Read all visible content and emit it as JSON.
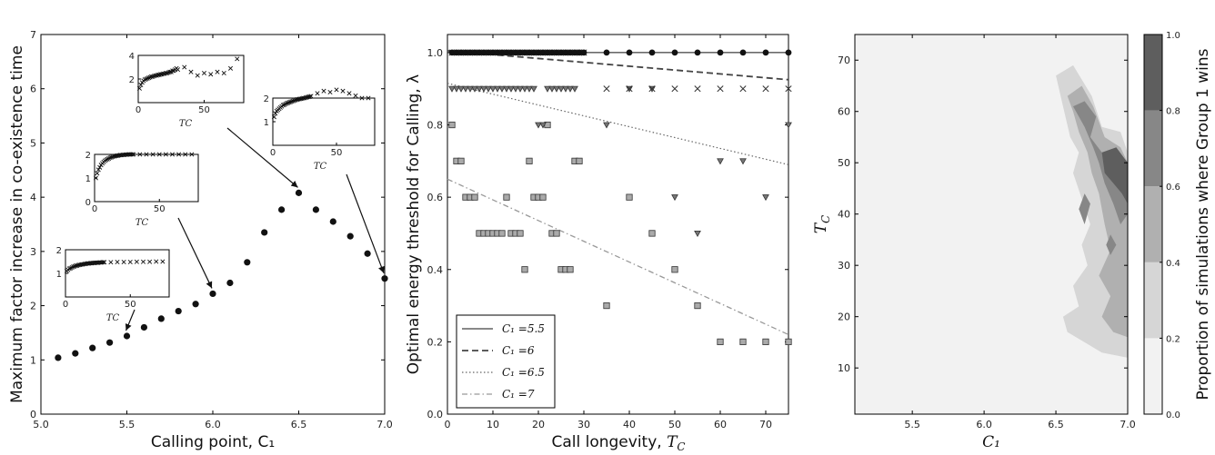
{
  "chart_data": [
    {
      "type": "scatter",
      "xlabel": "Calling point, C₁",
      "ylabel": "Maximum factor increase in co-existence time",
      "xlim": [
        5.0,
        7.0
      ],
      "ylim": [
        0,
        7
      ],
      "x_ticks": [
        "5.0",
        "5.5",
        "6.0",
        "6.5",
        "7.0"
      ],
      "y_ticks": [
        "0",
        "1",
        "2",
        "3",
        "4",
        "5",
        "6",
        "7"
      ],
      "series": [
        {
          "marker": "circle",
          "x": [
            5.1,
            5.2,
            5.3,
            5.4,
            5.5,
            5.6,
            5.7,
            5.8,
            5.9,
            6.0,
            6.1,
            6.2,
            6.3,
            6.4,
            6.5,
            6.6,
            6.7,
            6.8,
            6.9,
            7.0
          ],
          "y": [
            1.04,
            1.12,
            1.22,
            1.32,
            1.44,
            1.6,
            1.76,
            1.9,
            2.03,
            2.22,
            2.42,
            2.8,
            3.35,
            3.77,
            4.08,
            3.77,
            3.55,
            3.28,
            2.96,
            2.5
          ]
        }
      ],
      "insets": [
        {
          "xlabel": "T_C",
          "xlim": [
            0,
            80
          ],
          "ylim": [
            0,
            2
          ],
          "x_ticks": [
            "0",
            "50"
          ],
          "y_ticks": [
            "1",
            "2"
          ],
          "points_x": [
            1,
            2,
            3,
            4,
            5,
            6,
            7,
            8,
            9,
            10,
            11,
            12,
            13,
            14,
            15,
            16,
            17,
            18,
            19,
            20,
            21,
            22,
            23,
            24,
            25,
            26,
            27,
            28,
            29,
            30,
            35,
            40,
            45,
            50,
            55,
            60,
            65,
            70,
            75
          ],
          "points_y": [
            1.1,
            1.15,
            1.2,
            1.22,
            1.25,
            1.28,
            1.3,
            1.32,
            1.33,
            1.35,
            1.36,
            1.37,
            1.38,
            1.39,
            1.4,
            1.41,
            1.42,
            1.42,
            1.43,
            1.43,
            1.44,
            1.44,
            1.45,
            1.45,
            1.45,
            1.46,
            1.46,
            1.46,
            1.47,
            1.47,
            1.47,
            1.48,
            1.48,
            1.48,
            1.49,
            1.49,
            1.49,
            1.5,
            1.5
          ],
          "arrow_to": [
            5.5,
            1.44
          ]
        },
        {
          "xlabel": "T_C",
          "xlim": [
            0,
            80
          ],
          "ylim": [
            0,
            2
          ],
          "x_ticks": [
            "0",
            "50"
          ],
          "y_ticks": [
            "0",
            "1",
            "2"
          ],
          "points_x": [
            1,
            2,
            3,
            4,
            5,
            6,
            7,
            8,
            9,
            10,
            11,
            12,
            13,
            14,
            15,
            16,
            17,
            18,
            19,
            20,
            21,
            22,
            23,
            24,
            25,
            26,
            27,
            28,
            29,
            30,
            35,
            40,
            45,
            50,
            55,
            60,
            65,
            70,
            75
          ],
          "points_y": [
            1.0,
            1.2,
            1.35,
            1.45,
            1.55,
            1.62,
            1.68,
            1.73,
            1.77,
            1.8,
            1.83,
            1.86,
            1.88,
            1.9,
            1.92,
            1.93,
            1.94,
            1.95,
            1.96,
            1.97,
            1.97,
            1.98,
            1.98,
            1.99,
            1.99,
            2.0,
            2.0,
            2.0,
            2.0,
            2.0,
            2.0,
            2.0,
            2.0,
            2.0,
            2.0,
            2.0,
            2.0,
            2.0,
            2.0
          ],
          "arrow_to": [
            6.0,
            2.22
          ]
        },
        {
          "xlabel": "T_C",
          "xlim": [
            0,
            80
          ],
          "ylim": [
            0,
            4
          ],
          "x_ticks": [
            "0",
            "50"
          ],
          "y_ticks": [
            "2",
            "4"
          ],
          "points_x": [
            1,
            2,
            3,
            4,
            5,
            6,
            7,
            8,
            9,
            10,
            11,
            12,
            13,
            14,
            15,
            16,
            17,
            18,
            19,
            20,
            21,
            22,
            23,
            24,
            25,
            26,
            27,
            28,
            29,
            30,
            35,
            40,
            45,
            50,
            55,
            60,
            65,
            70,
            75
          ],
          "points_y": [
            1.2,
            1.5,
            1.7,
            1.85,
            1.95,
            2.0,
            2.05,
            2.1,
            2.15,
            2.2,
            2.2,
            2.25,
            2.3,
            2.3,
            2.35,
            2.35,
            2.4,
            2.4,
            2.45,
            2.45,
            2.5,
            2.5,
            2.55,
            2.6,
            2.6,
            2.7,
            2.7,
            2.8,
            2.9,
            2.8,
            3.0,
            2.6,
            2.3,
            2.5,
            2.4,
            2.6,
            2.5,
            2.9,
            3.7
          ],
          "arrow_to": [
            6.5,
            4.08
          ]
        },
        {
          "xlabel": "T_C",
          "xlim": [
            0,
            80
          ],
          "ylim": [
            0,
            2
          ],
          "x_ticks": [
            "0",
            "50"
          ],
          "y_ticks": [
            "1",
            "2"
          ],
          "points_x": [
            1,
            2,
            3,
            4,
            5,
            6,
            7,
            8,
            9,
            10,
            11,
            12,
            13,
            14,
            15,
            16,
            17,
            18,
            19,
            20,
            21,
            22,
            23,
            24,
            25,
            26,
            27,
            28,
            29,
            30,
            35,
            40,
            45,
            50,
            55,
            60,
            65,
            70,
            75
          ],
          "points_y": [
            1.2,
            1.35,
            1.45,
            1.5,
            1.55,
            1.6,
            1.65,
            1.7,
            1.72,
            1.75,
            1.78,
            1.8,
            1.82,
            1.84,
            1.86,
            1.88,
            1.9,
            1.92,
            1.94,
            1.95,
            1.96,
            1.97,
            1.98,
            2.0,
            2.0,
            2.02,
            2.04,
            2.05,
            2.06,
            2.08,
            2.2,
            2.3,
            2.25,
            2.35,
            2.3,
            2.2,
            2.1,
            2.0,
            2.0
          ],
          "arrow_to": [
            7.0,
            2.5
          ]
        }
      ]
    },
    {
      "type": "scatter",
      "xlabel": "Call longevity, T_C",
      "ylabel": "Optimal energy threshold for Calling, λ",
      "xlim": [
        0,
        75
      ],
      "ylim": [
        0.0,
        1.05
      ],
      "x_ticks": [
        "0",
        "10",
        "20",
        "30",
        "40",
        "50",
        "60",
        "70"
      ],
      "y_ticks": [
        "0.0",
        "0.2",
        "0.4",
        "0.6",
        "0.8",
        "1.0"
      ],
      "legend": "lower-left",
      "series": [
        {
          "name": "C₁ =5.5",
          "line_style": "solid",
          "marker": "circle",
          "x": [
            1,
            2,
            3,
            4,
            5,
            6,
            7,
            8,
            9,
            10,
            11,
            12,
            13,
            14,
            15,
            16,
            17,
            18,
            19,
            20,
            21,
            22,
            23,
            24,
            25,
            26,
            27,
            28,
            29,
            30,
            35,
            40,
            45,
            50,
            55,
            60,
            65,
            70,
            75
          ],
          "y": [
            1.0,
            1.0,
            1.0,
            1.0,
            1.0,
            1.0,
            1.0,
            1.0,
            1.0,
            1.0,
            1.0,
            1.0,
            1.0,
            1.0,
            1.0,
            1.0,
            1.0,
            1.0,
            1.0,
            1.0,
            1.0,
            1.0,
            1.0,
            1.0,
            1.0,
            1.0,
            1.0,
            1.0,
            1.0,
            1.0,
            1.0,
            1.0,
            1.0,
            1.0,
            1.0,
            1.0,
            1.0,
            1.0,
            1.0
          ],
          "fit": [
            [
              0,
              1.0
            ],
            [
              75,
              1.0
            ]
          ]
        },
        {
          "name": "C₁ =6",
          "line_style": "dashed",
          "marker": "x",
          "x": [
            1,
            2,
            3,
            4,
            5,
            6,
            7,
            8,
            9,
            10,
            11,
            12,
            13,
            14,
            15,
            16,
            17,
            18,
            19,
            20,
            21,
            22,
            23,
            24,
            25,
            26,
            27,
            28,
            29,
            30,
            35,
            40,
            45,
            50,
            55,
            60,
            65,
            70,
            75
          ],
          "y": [
            1.0,
            1.0,
            1.0,
            1.0,
            1.0,
            1.0,
            1.0,
            1.0,
            1.0,
            1.0,
            1.0,
            1.0,
            1.0,
            1.0,
            1.0,
            1.0,
            1.0,
            1.0,
            1.0,
            1.0,
            1.0,
            1.0,
            1.0,
            1.0,
            1.0,
            1.0,
            1.0,
            1.0,
            1.0,
            1.0,
            0.9,
            0.9,
            0.9,
            0.9,
            0.9,
            0.9,
            0.9,
            0.9,
            0.9
          ],
          "fit": [
            [
              0,
              1.005
            ],
            [
              75,
              0.925
            ]
          ]
        },
        {
          "name": "C₁ =6.5",
          "line_style": "dotted",
          "marker": "triangle-down",
          "x": [
            1,
            2,
            3,
            4,
            5,
            6,
            7,
            8,
            9,
            10,
            11,
            12,
            13,
            14,
            15,
            16,
            17,
            18,
            19,
            20,
            21,
            22,
            23,
            24,
            25,
            26,
            27,
            28,
            35,
            40,
            45,
            50,
            55,
            60,
            65,
            70,
            75
          ],
          "y": [
            0.9,
            0.9,
            0.9,
            0.9,
            0.9,
            0.9,
            0.9,
            0.9,
            0.9,
            0.9,
            0.9,
            0.9,
            0.9,
            0.9,
            0.9,
            0.9,
            0.9,
            0.9,
            0.9,
            0.8,
            0.8,
            0.9,
            0.9,
            0.9,
            0.9,
            0.9,
            0.9,
            0.9,
            0.8,
            0.9,
            0.9,
            0.6,
            0.5,
            0.7,
            0.7,
            0.6,
            0.8
          ],
          "fit": [
            [
              0,
              0.915
            ],
            [
              75,
              0.69
            ]
          ]
        },
        {
          "name": "C₁ =7",
          "line_style": "dash-dot",
          "marker": "square",
          "x": [
            1,
            2,
            3,
            4,
            5,
            6,
            7,
            8,
            9,
            10,
            11,
            12,
            13,
            14,
            15,
            16,
            17,
            18,
            19,
            20,
            21,
            22,
            23,
            24,
            25,
            26,
            27,
            28,
            29,
            35,
            40,
            45,
            50,
            55,
            60,
            65,
            70,
            75
          ],
          "y": [
            0.8,
            0.7,
            0.7,
            0.6,
            0.6,
            0.6,
            0.5,
            0.5,
            0.5,
            0.5,
            0.5,
            0.5,
            0.6,
            0.5,
            0.5,
            0.5,
            0.4,
            0.7,
            0.6,
            0.6,
            0.6,
            0.8,
            0.5,
            0.5,
            0.4,
            0.4,
            0.4,
            0.7,
            0.7,
            0.3,
            0.6,
            0.5,
            0.4,
            0.3,
            0.2,
            0.2,
            0.2,
            0.2
          ],
          "fit": [
            [
              0,
              0.65
            ],
            [
              75,
              0.22
            ]
          ]
        }
      ]
    },
    {
      "type": "heatmap",
      "xlabel": "C₁",
      "ylabel": "T_C",
      "xlim": [
        5.1,
        7.0
      ],
      "ylim": [
        1,
        75
      ],
      "x_ticks": [
        "5.5",
        "6.0",
        "6.5",
        "7.0"
      ],
      "y_ticks": [
        "10",
        "20",
        "30",
        "40",
        "50",
        "60",
        "70"
      ],
      "colorbar": {
        "label": "Proportion of simulations where Group 1 wins",
        "ticks": [
          "0.0",
          "0.2",
          "0.4",
          "0.6",
          "0.8",
          "1.0"
        ],
        "levels": [
          0.0,
          0.2,
          0.4,
          0.6,
          0.8,
          1.0
        ],
        "colors": [
          "#f2f2f2",
          "#d6d6d6",
          "#b0b0b0",
          "#878787",
          "#5e5e5e",
          "#353535"
        ]
      },
      "regions": [
        {
          "level": 0.2,
          "c1_range": [
            6.5,
            7.0
          ],
          "tc_range": [
            12,
            68
          ]
        },
        {
          "level": 0.4,
          "c1_range": [
            6.58,
            7.0
          ],
          "tc_range": [
            15,
            64
          ]
        },
        {
          "level": 0.6,
          "c1_range": [
            6.7,
            7.0
          ],
          "tc_range": [
            38,
            62
          ]
        },
        {
          "level": 0.8,
          "c1_range": [
            6.82,
            7.0
          ],
          "tc_range": [
            42,
            54
          ]
        }
      ]
    }
  ]
}
